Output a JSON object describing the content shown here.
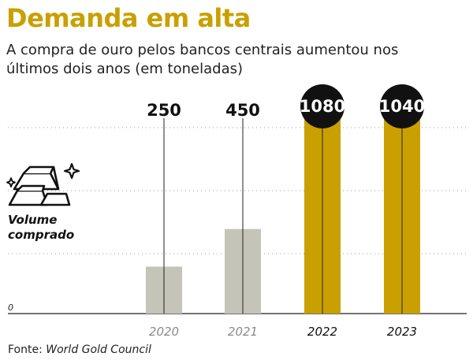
{
  "header": {
    "title": "Demanda em alta",
    "subtitle": "A compra de ouro pelos bancos centrais aumentou nos últimos dois anos (em toneladas)"
  },
  "legend": {
    "line1": "Volume",
    "line2": "comprado"
  },
  "source": {
    "prefix": "Fonte: ",
    "name": "World Gold Council"
  },
  "icons": {
    "legend_icon": "gold-bars-icon"
  },
  "colors": {
    "title": "#c9a000",
    "highlight_bar": "#c9a000",
    "muted_bar": "#c4c4b8",
    "label_circle": "#111111"
  },
  "chart_data": {
    "type": "bar",
    "categories": [
      "2020",
      "2021",
      "2022",
      "2023"
    ],
    "values": [
      250,
      450,
      1080,
      1040
    ],
    "value_labels": [
      "250",
      "450",
      "1080",
      "1040"
    ],
    "highlighted": [
      false,
      false,
      true,
      true
    ],
    "ylim": [
      0,
      1300
    ],
    "zero_label": "0",
    "grid": true,
    "unit": "toneladas"
  }
}
